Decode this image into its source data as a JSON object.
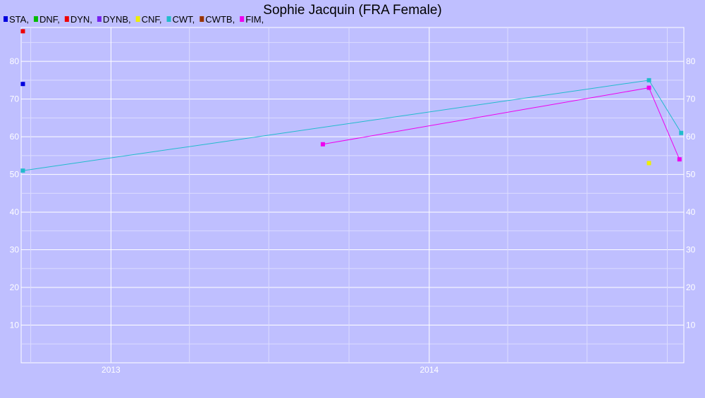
{
  "chart_data": {
    "type": "line",
    "title": "Sophie Jacquin (FRA Female)",
    "legend": {
      "placement": "top-left",
      "entries": [
        {
          "label": "STA,",
          "color": "#0000dd"
        },
        {
          "label": "DNF,",
          "color": "#00bb00"
        },
        {
          "label": "DYN,",
          "color": "#ee0000"
        },
        {
          "label": "DYNB,",
          "color": "#7722ee"
        },
        {
          "label": "CNF,",
          "color": "#eeee00"
        },
        {
          "label": "CWT,",
          "color": "#22bbcc"
        },
        {
          "label": "CWTB,",
          "color": "#993300"
        },
        {
          "label": "FIM,",
          "color": "#ee00ee"
        }
      ]
    },
    "x_axis": {
      "type": "date",
      "range": [
        "2012-09-20",
        "2014-10-20"
      ],
      "tick_labels": [
        {
          "date": "2013-01-01",
          "label": "2013"
        },
        {
          "date": "2014-01-01",
          "label": "2014"
        }
      ],
      "minor_gridlines": [
        "2012-10-01",
        "2013-04-01",
        "2013-07-01",
        "2013-10-01",
        "2014-04-01",
        "2014-07-01",
        "2014-10-01"
      ]
    },
    "y_axis": {
      "range": [
        0,
        89
      ],
      "ticks": [
        10,
        20,
        30,
        40,
        50,
        60,
        70,
        80
      ],
      "minor_ticks": [
        5,
        15,
        25,
        35,
        45,
        55,
        65,
        75,
        85
      ],
      "left_labels": true,
      "right_labels": true
    },
    "grid": true,
    "series": [
      {
        "name": "STA",
        "color": "#0000dd",
        "connected": false,
        "points": [
          {
            "x": "2012-09-22",
            "y": 74
          }
        ]
      },
      {
        "name": "DYN",
        "color": "#ee0000",
        "connected": false,
        "points": [
          {
            "x": "2012-09-22",
            "y": 88
          }
        ]
      },
      {
        "name": "CNF",
        "color": "#eeee00",
        "connected": false,
        "points": [
          {
            "x": "2014-09-10",
            "y": 53
          }
        ]
      },
      {
        "name": "CWT",
        "color": "#22bbcc",
        "connected": true,
        "points": [
          {
            "x": "2012-09-22",
            "y": 51
          },
          {
            "x": "2014-09-10",
            "y": 75
          },
          {
            "x": "2014-10-17",
            "y": 61
          }
        ]
      },
      {
        "name": "FIM",
        "color": "#ee00ee",
        "connected": true,
        "points": [
          {
            "x": "2013-09-01",
            "y": 58
          },
          {
            "x": "2014-09-10",
            "y": 73
          },
          {
            "x": "2014-10-15",
            "y": 54
          }
        ]
      }
    ]
  }
}
